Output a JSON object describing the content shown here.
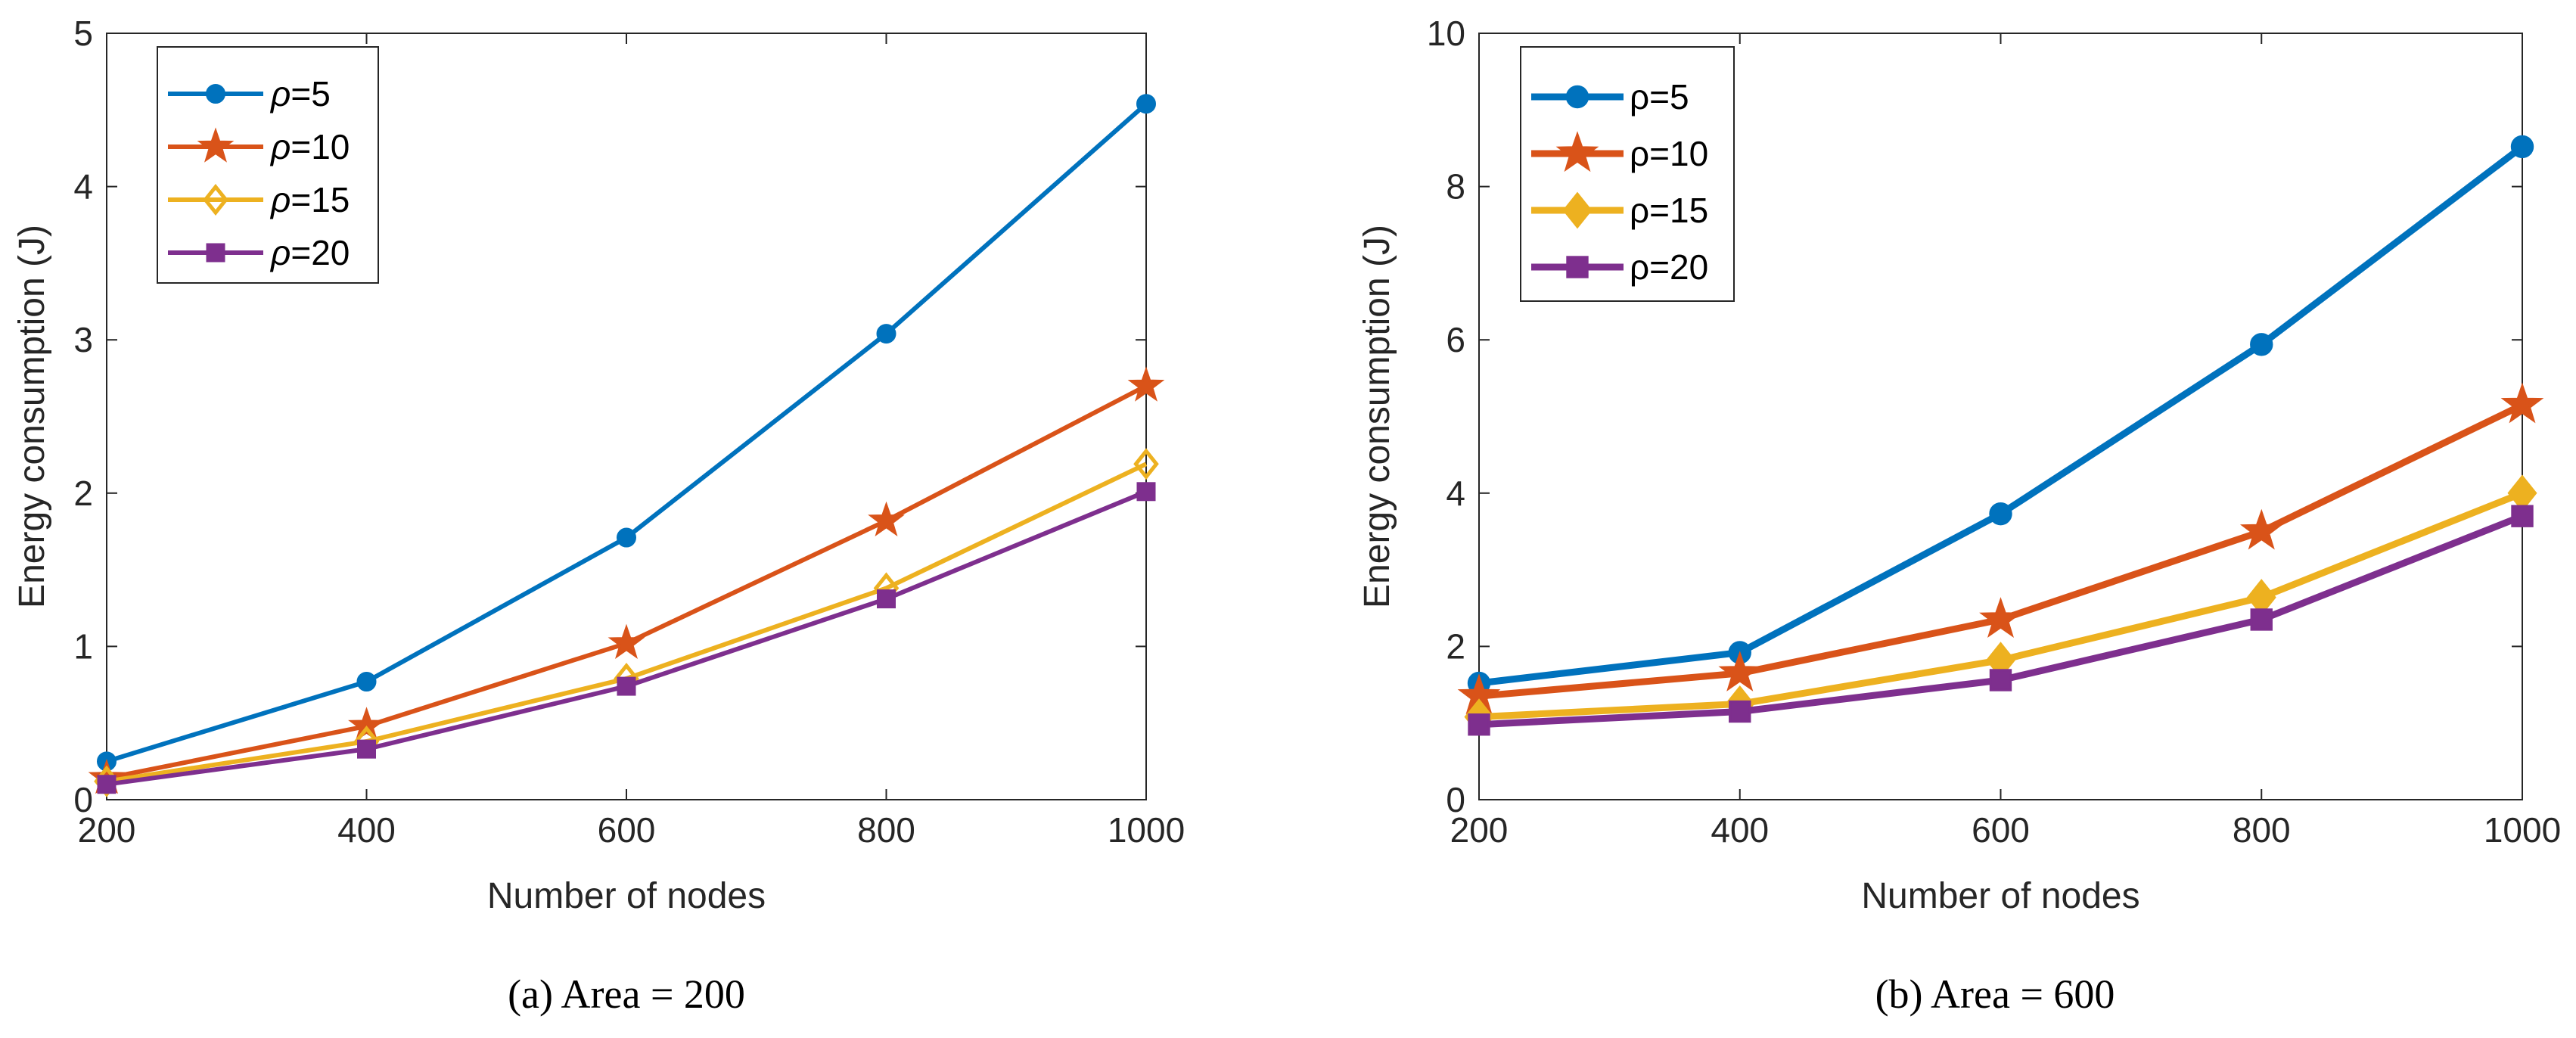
{
  "chart_data": [
    {
      "type": "line",
      "x": [
        200,
        400,
        600,
        800,
        1000
      ],
      "xlabel": "Number of nodes",
      "ylabel": "Energy consumption (J)",
      "xlim": [
        200,
        1000
      ],
      "ylim": [
        0,
        5
      ],
      "xticks": [
        200,
        400,
        600,
        800,
        1000
      ],
      "yticks": [
        0,
        1,
        2,
        3,
        4,
        5
      ],
      "caption": "(a)  Area = 200",
      "grid": false,
      "legend_position": "top-left",
      "series": [
        {
          "name": "ρ=5",
          "label_symbol": "ρ",
          "label_value": "=5",
          "color": "#0072BD",
          "marker": "circle",
          "values": [
            0.25,
            0.77,
            1.71,
            3.04,
            4.54
          ]
        },
        {
          "name": "ρ=10",
          "label_symbol": "ρ",
          "label_value": "=10",
          "color": "#D95319",
          "marker": "star",
          "values": [
            0.14,
            0.48,
            1.02,
            1.82,
            2.7
          ]
        },
        {
          "name": "ρ=15",
          "label_symbol": "ρ",
          "label_value": "=15",
          "color": "#EDB120",
          "marker": "diamond",
          "values": [
            0.12,
            0.38,
            0.79,
            1.38,
            2.19
          ]
        },
        {
          "name": "ρ=20",
          "label_symbol": "ρ",
          "label_value": "=20",
          "color": "#7E2F8E",
          "marker": "square",
          "values": [
            0.1,
            0.33,
            0.74,
            1.31,
            2.01
          ]
        }
      ]
    },
    {
      "type": "line",
      "x": [
        200,
        400,
        600,
        800,
        1000
      ],
      "xlabel": "Number of nodes",
      "ylabel": "Energy consumption (J)",
      "xlim": [
        200,
        1000
      ],
      "ylim": [
        0,
        10
      ],
      "xticks": [
        200,
        400,
        600,
        800,
        1000
      ],
      "yticks": [
        0,
        2,
        4,
        6,
        8,
        10
      ],
      "caption": "(b)  Area = 600",
      "grid": false,
      "legend_position": "top-left",
      "series": [
        {
          "name": "ρ=5",
          "label_symbol": "ρ",
          "label_value": "=5",
          "color": "#0072BD",
          "marker": "circle",
          "values": [
            1.52,
            1.92,
            3.73,
            5.94,
            8.52
          ]
        },
        {
          "name": "ρ=10",
          "label_symbol": "ρ",
          "label_value": "=10",
          "color": "#D95319",
          "marker": "star",
          "values": [
            1.35,
            1.65,
            2.35,
            3.5,
            5.15
          ]
        },
        {
          "name": "ρ=15",
          "label_symbol": "ρ",
          "label_value": "=15",
          "color": "#EDB120",
          "marker": "diamond",
          "values": [
            1.08,
            1.25,
            1.82,
            2.64,
            4.0
          ]
        },
        {
          "name": "ρ=20",
          "label_symbol": "ρ",
          "label_value": "=20",
          "color": "#7E2F8E",
          "marker": "square",
          "values": [
            0.98,
            1.15,
            1.56,
            2.35,
            3.7
          ]
        }
      ]
    }
  ]
}
